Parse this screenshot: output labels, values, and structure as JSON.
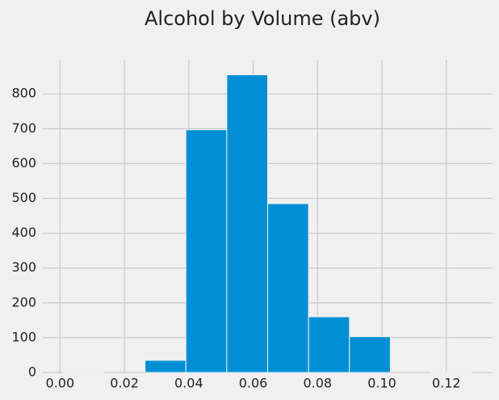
{
  "chart_data": {
    "type": "histogram",
    "title": "Alcohol by Volume (abv)",
    "bins": [
      0.001,
      0.0137,
      0.0264,
      0.0391,
      0.0518,
      0.0645,
      0.0772,
      0.0899,
      0.1026,
      0.1153,
      0.128
    ],
    "counts": [
      1,
      0,
      35,
      697,
      855,
      485,
      160,
      103,
      0,
      1
    ],
    "color": "#008fd5",
    "xlim": [
      -0.00535,
      0.13435
    ],
    "xticks": [
      {
        "value": 0,
        "label": "0.00"
      },
      {
        "value": 0.02,
        "label": "0.02"
      },
      {
        "value": 0.04,
        "label": "0.04"
      },
      {
        "value": 0.06,
        "label": "0.06"
      },
      {
        "value": 0.08,
        "label": "0.08"
      },
      {
        "value": 0.1,
        "label": "0.10"
      },
      {
        "value": 0.12,
        "label": "0.12"
      }
    ],
    "ylim": [
      0,
      898
    ],
    "yticks": [
      0,
      100,
      200,
      300,
      400,
      500,
      600,
      700,
      800
    ],
    "grid": true
  }
}
